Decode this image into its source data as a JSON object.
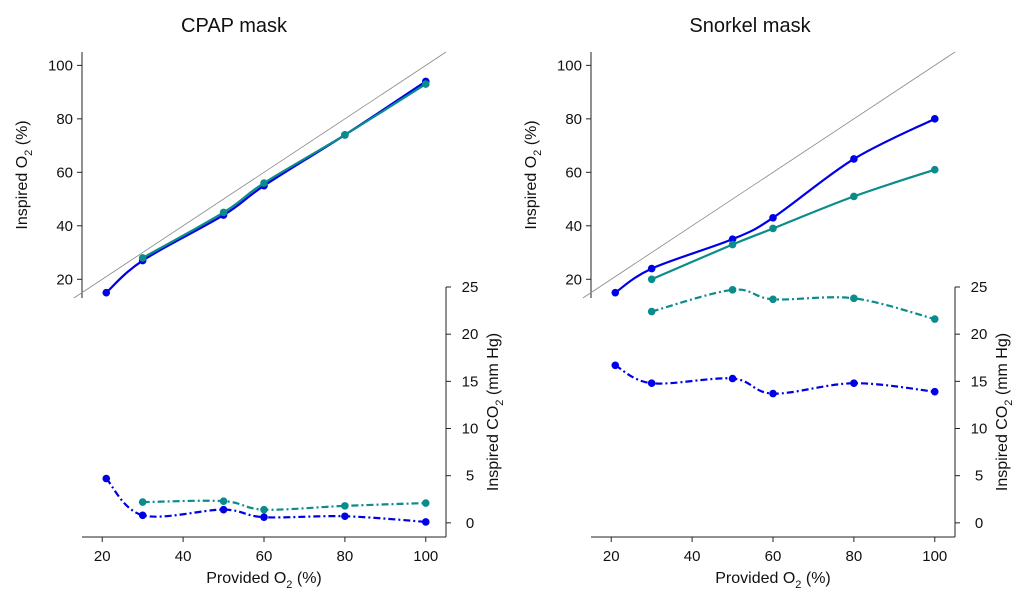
{
  "chart_data": [
    {
      "type": "line",
      "title": "CPAP mask",
      "xlabel": "Provided O",
      "xlabel_sub": "2",
      "xlabel_suffix": " (%)",
      "xlim": [
        15,
        105
      ],
      "xticks": [
        "20",
        "40",
        "60",
        "80",
        "100"
      ],
      "top_panel": {
        "ylabel": "Inspired O",
        "ylabel_sub": "2",
        "ylabel_suffix": " (%)",
        "ylim": [
          13,
          105
        ],
        "yticks": [
          "20",
          "40",
          "60",
          "80",
          "100"
        ],
        "identity_line": true,
        "series": [
          {
            "color": "#0000e6",
            "x": [
              21,
              30,
              50,
              60,
              80,
              100
            ],
            "y": [
              15,
              27,
              44,
              55,
              74,
              94
            ]
          },
          {
            "color": "#0a8c8c",
            "x": [
              30,
              50,
              60,
              80,
              100
            ],
            "y": [
              28,
              45,
              56,
              74,
              93
            ]
          }
        ]
      },
      "bottom_panel": {
        "ylabel": "Inspired CO",
        "ylabel_sub": "2",
        "ylabel_suffix": " (mm Hg)",
        "ylim": [
          -1.5,
          25
        ],
        "yticks": [
          "0",
          "5",
          "10",
          "15",
          "20",
          "25"
        ],
        "axis_side": "right",
        "series": [
          {
            "color": "#0000e6",
            "style": "dash-dot",
            "x": [
              21,
              30,
              50,
              60,
              80,
              100
            ],
            "y": [
              4.7,
              0.8,
              1.4,
              0.6,
              0.7,
              0.1
            ]
          },
          {
            "color": "#0a8c8c",
            "style": "dash-dot",
            "x": [
              30,
              50,
              60,
              80,
              100
            ],
            "y": [
              2.2,
              2.3,
              1.4,
              1.8,
              2.1
            ]
          }
        ]
      }
    },
    {
      "type": "line",
      "title": "Snorkel mask",
      "xlabel": "Provided O",
      "xlabel_sub": "2",
      "xlabel_suffix": " (%)",
      "xlim": [
        15,
        105
      ],
      "xticks": [
        "20",
        "40",
        "60",
        "80",
        "100"
      ],
      "top_panel": {
        "ylabel": "Inspired O",
        "ylabel_sub": "2",
        "ylabel_suffix": " (%)",
        "ylim": [
          13,
          105
        ],
        "yticks": [
          "20",
          "40",
          "60",
          "80",
          "100"
        ],
        "identity_line": true,
        "series": [
          {
            "color": "#0000e6",
            "x": [
              21,
              30,
              50,
              60,
              80,
              100
            ],
            "y": [
              15,
              24,
              35,
              43,
              65,
              80
            ]
          },
          {
            "color": "#0a8c8c",
            "x": [
              30,
              50,
              60,
              80,
              100
            ],
            "y": [
              20,
              33,
              39,
              51,
              61
            ]
          }
        ]
      },
      "bottom_panel": {
        "ylabel": "Inspired CO",
        "ylabel_sub": "2",
        "ylabel_suffix": " (mm Hg)",
        "ylim": [
          -1.5,
          25
        ],
        "yticks": [
          "0",
          "5",
          "10",
          "15",
          "20",
          "25"
        ],
        "axis_side": "right",
        "series": [
          {
            "color": "#0000e6",
            "style": "dash-dot",
            "x": [
              21,
              30,
              50,
              60,
              80,
              100
            ],
            "y": [
              16.7,
              14.8,
              15.3,
              13.7,
              14.8,
              13.9
            ]
          },
          {
            "color": "#0a8c8c",
            "style": "dash-dot",
            "x": [
              30,
              50,
              60,
              80,
              100
            ],
            "y": [
              22.4,
              24.7,
              23.7,
              23.8,
              21.6
            ]
          }
        ]
      }
    }
  ]
}
